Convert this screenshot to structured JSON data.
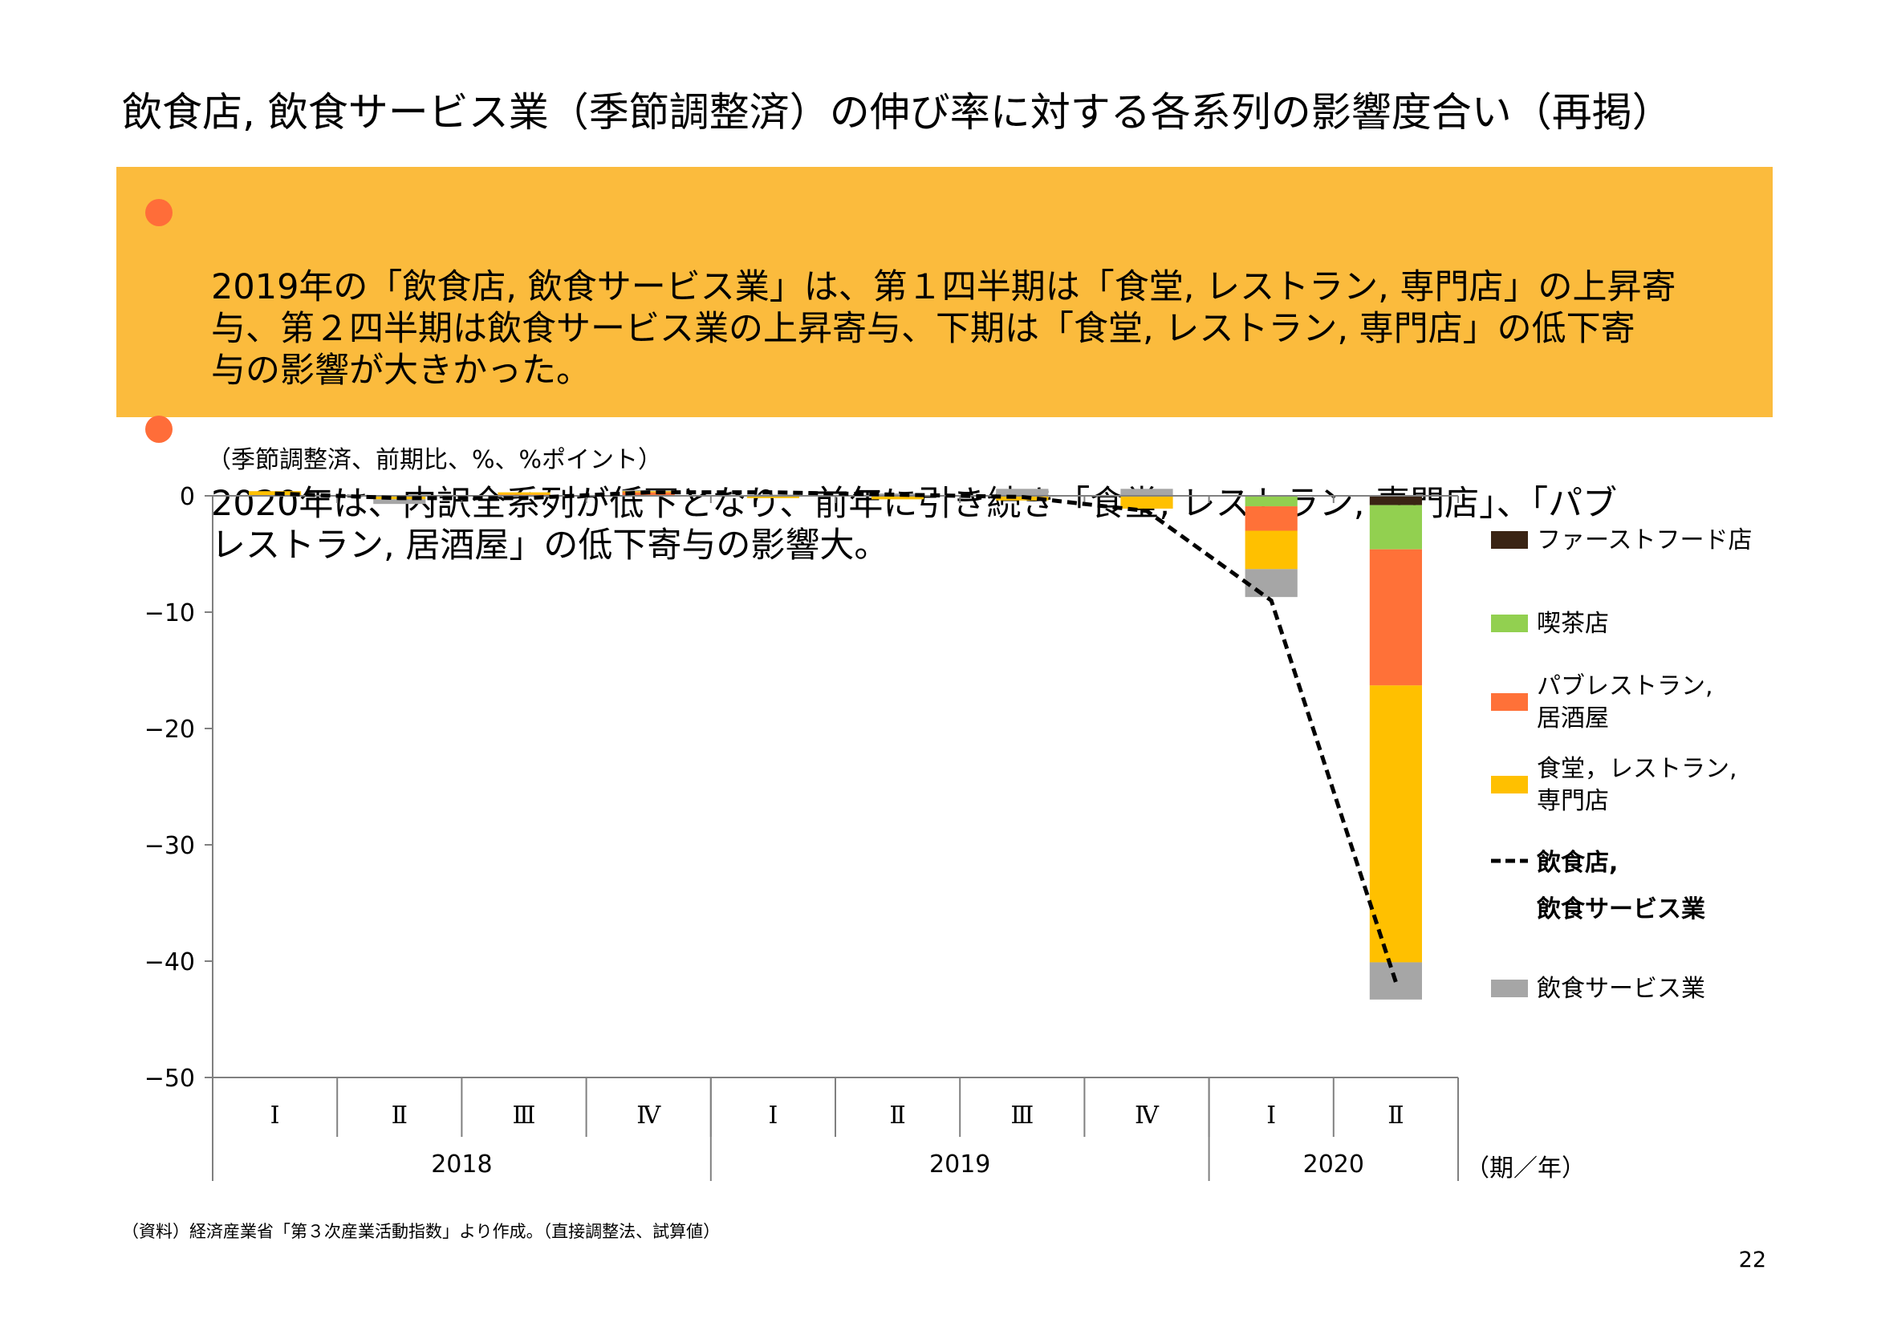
{
  "slide": {
    "title": "飲食店, 飲食サービス業（季節調整済）の伸び率に対する各系列の影響度合い（再掲）",
    "bullets": [
      "2019年の「飲食店, 飲食サービス業」は、第１四半期は「食堂, レストラン, 専門店」の上昇寄\n与、第２四半期は飲食サービス業の上昇寄与、下期は「食堂, レストラン, 専門店」の低下寄\n与の影響が大きかった。",
      "2020年は、内訳全系列が低下となり、前年に引き続き「食堂, レストラン, 専門店」、「パブ\nレストラン, 居酒屋」の低下寄与の影響大。"
    ],
    "source": "（資料）経済産業省「第３次産業活動指数」より作成。（直接調整法、試算値）",
    "page_number": "22"
  },
  "colors": {
    "box_bg": "#FBBB3D",
    "bullet_dot": "#FF6D39",
    "fast_food": "#3A2414",
    "cafe": "#92D050",
    "pub": "#FF7138",
    "restaurant": "#FFC000",
    "services": "#A6A6A6",
    "total_line": "#000000"
  },
  "chart_data": {
    "type": "bar",
    "stacked": true,
    "unit_label": "（季節調整済、前期比、%、%ポイント）",
    "x_axis_title": "（期／年）",
    "categories": [
      "Ⅰ",
      "Ⅱ",
      "Ⅲ",
      "Ⅳ",
      "Ⅰ",
      "Ⅱ",
      "Ⅲ",
      "Ⅳ",
      "Ⅰ",
      "Ⅱ"
    ],
    "years": [
      {
        "label": "2018",
        "span": 4
      },
      {
        "label": "2019",
        "span": 4
      },
      {
        "label": "2020",
        "span": 2
      }
    ],
    "ylim": [
      -50,
      0
    ],
    "yticks": [
      0,
      -10,
      -20,
      -30,
      -40,
      -50
    ],
    "ytick_labels": [
      "0",
      "−10",
      "−20",
      "−30",
      "−40",
      "−50"
    ],
    "grid": false,
    "legend_position": "right",
    "series": [
      {
        "key": "fast_food",
        "name": "ファーストフード店",
        "values": [
          0.0,
          0.0,
          0.0,
          0.0,
          0.0,
          0.0,
          0.0,
          0.0,
          0.0,
          -0.8
        ]
      },
      {
        "key": "cafe",
        "name": "喫茶店",
        "values": [
          0.0,
          0.0,
          0.0,
          0.0,
          0.0,
          0.0,
          0.0,
          0.0,
          -0.9,
          -3.8
        ]
      },
      {
        "key": "pub",
        "name": "パブレストラン,\n居酒屋",
        "values": [
          0.0,
          0.0,
          0.1,
          0.3,
          0.0,
          0.0,
          0.0,
          0.0,
          -2.1,
          -11.7
        ]
      },
      {
        "key": "restaurant",
        "name": "食堂，レストラン,\n専門店",
        "values": [
          0.4,
          -0.3,
          0.2,
          0.1,
          -0.2,
          -0.3,
          -0.4,
          -1.1,
          -3.3,
          -23.8
        ]
      },
      {
        "key": "services",
        "name": "飲食サービス業",
        "values": [
          0.0,
          -0.4,
          -0.1,
          0.1,
          0.1,
          0.2,
          0.6,
          0.6,
          -2.4,
          -3.2
        ]
      }
    ],
    "line": {
      "key": "total_line",
      "name": "飲食店,\n飲食サービス業",
      "values": [
        0.2,
        -0.2,
        -0.2,
        0.3,
        0.3,
        0.1,
        -0.1,
        -1.3,
        -9.0,
        -41.8
      ]
    }
  }
}
